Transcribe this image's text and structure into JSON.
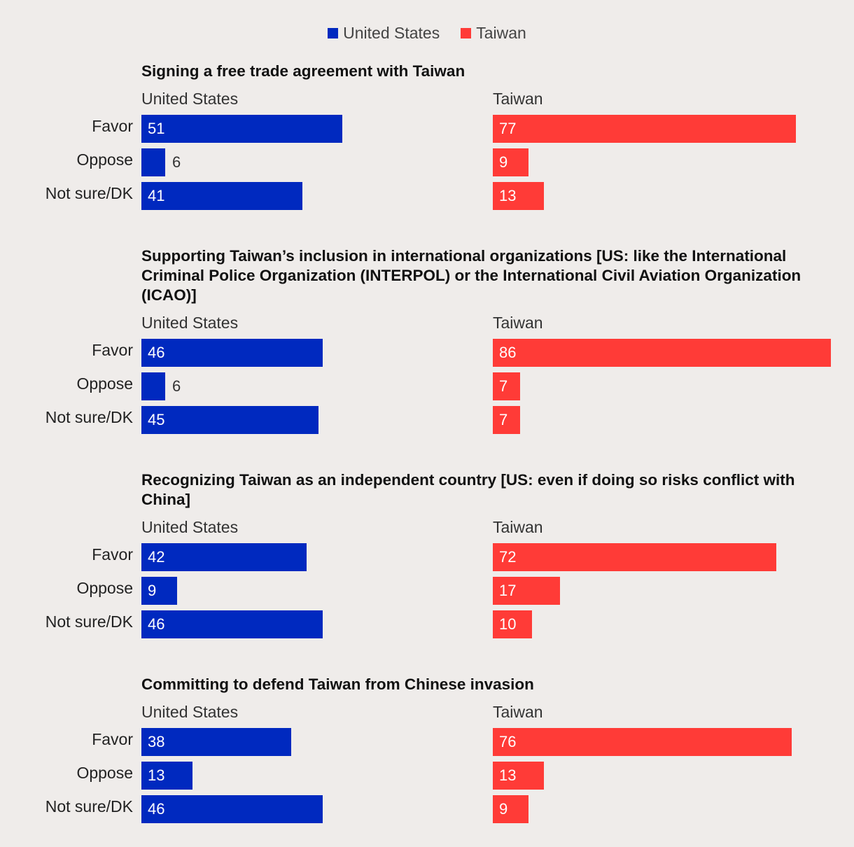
{
  "legend": [
    {
      "name": "United States",
      "color": "#0029bf"
    },
    {
      "name": "Taiwan",
      "color": "#ff3b37"
    }
  ],
  "chart_data": {
    "type": "bar",
    "orientation": "horizontal",
    "unit": "percent",
    "xlim": [
      0,
      100
    ],
    "categories": [
      "Favor",
      "Oppose",
      "Not sure/DK"
    ],
    "columns": [
      "United States",
      "Taiwan"
    ],
    "panels": [
      {
        "title": "Signing a free trade agreement with Taiwan",
        "series": [
          {
            "name": "United States",
            "values": [
              51,
              6,
              41
            ]
          },
          {
            "name": "Taiwan",
            "values": [
              77,
              9,
              13
            ]
          }
        ]
      },
      {
        "title": "Supporting Taiwan’s inclusion in international organizations [US: like the International Criminal Police Organization (INTERPOL) or the International Civil Aviation Organization (ICAO)]",
        "series": [
          {
            "name": "United States",
            "values": [
              46,
              6,
              45
            ]
          },
          {
            "name": "Taiwan",
            "values": [
              86,
              7,
              7
            ]
          }
        ]
      },
      {
        "title": "Recognizing Taiwan as an independent country [US: even if doing so risks conflict with China]",
        "series": [
          {
            "name": "United States",
            "values": [
              42,
              9,
              46
            ]
          },
          {
            "name": "Taiwan",
            "values": [
              72,
              17,
              10
            ]
          }
        ]
      },
      {
        "title": "Committing to defend Taiwan from Chinese invasion",
        "series": [
          {
            "name": "United States",
            "values": [
              38,
              13,
              46
            ]
          },
          {
            "name": "Taiwan",
            "values": [
              76,
              13,
              9
            ]
          }
        ]
      }
    ]
  }
}
